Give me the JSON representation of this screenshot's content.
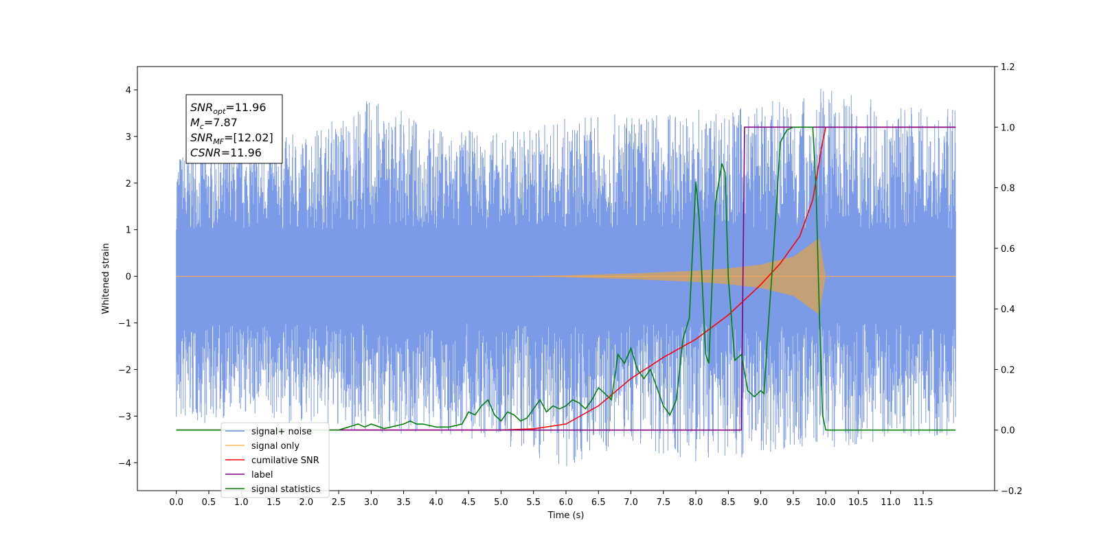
{
  "chart_data": {
    "type": "line",
    "xlabel": "Time (s)",
    "ylabel": "Whitened strain",
    "xlim": [
      -0.6,
      12.6
    ],
    "ylim": [
      -4.6,
      4.5
    ],
    "y2lim": [
      -0.2,
      1.2
    ],
    "x_ticks": [
      "0.0",
      "0.5",
      "1.0",
      "1.5",
      "2.0",
      "2.5",
      "3.0",
      "3.5",
      "4.0",
      "4.5",
      "5.0",
      "5.5",
      "6.0",
      "6.5",
      "7.0",
      "7.5",
      "8.0",
      "8.5",
      "9.0",
      "9.5",
      "10.0",
      "10.5",
      "11.0",
      "11.5"
    ],
    "y_ticks": [
      "−4",
      "−3",
      "−2",
      "−1",
      "0",
      "1",
      "2",
      "3",
      "4"
    ],
    "y2_ticks": [
      "−0.2",
      "0.0",
      "0.2",
      "0.4",
      "0.6",
      "0.8",
      "1.0",
      "1.2"
    ],
    "grid": false,
    "legend_placement": "lower-left",
    "annotation": {
      "lines": [
        {
          "base": "SNR",
          "sub": "opt",
          "rest": "=11.96"
        },
        {
          "base": "M",
          "sub": "c",
          "rest": "=7.87"
        },
        {
          "base": "SNR",
          "sub": "MF",
          "rest": "=[12.02]"
        },
        {
          "base": "CSNR",
          "sub": "",
          "rest": "=11.96"
        }
      ]
    },
    "legend": [
      {
        "label": "signal+ noise",
        "color": "#6d8fe6"
      },
      {
        "label": "signal only",
        "color": "#ffb74d"
      },
      {
        "label": "cumilative SNR",
        "color": "#ff0000"
      },
      {
        "label": "label",
        "color": "#800080"
      },
      {
        "label": "signal statistics",
        "color": "#008000"
      }
    ],
    "series": [
      {
        "name": "signal+ noise",
        "axis": "left",
        "color": "#6d8fe6",
        "render": "band",
        "x": [
          0.0,
          1.0,
          2.0,
          3.0,
          4.0,
          5.0,
          6.0,
          7.0,
          8.0,
          9.0,
          10.0,
          11.0,
          12.0
        ],
        "max": [
          2.7,
          2.9,
          3.1,
          3.85,
          3.2,
          3.1,
          3.4,
          3.5,
          3.6,
          3.7,
          4.05,
          3.7,
          3.6
        ],
        "min": [
          -3.3,
          -3.0,
          -3.2,
          -3.4,
          -3.4,
          -3.7,
          -4.1,
          -3.6,
          -4.1,
          -3.8,
          -3.7,
          -3.5,
          -3.4
        ]
      },
      {
        "name": "signal only",
        "axis": "left",
        "color": "#c8a070",
        "render": "envelope",
        "x": [
          0.0,
          5.0,
          6.0,
          7.0,
          8.0,
          8.5,
          9.0,
          9.5,
          9.9,
          10.0,
          12.0
        ],
        "amp": [
          0.0,
          0.0,
          0.02,
          0.06,
          0.12,
          0.17,
          0.25,
          0.42,
          0.82,
          0.0,
          0.0
        ]
      },
      {
        "name": "cumilative SNR",
        "axis": "right",
        "color": "#ff0000",
        "x": [
          0.0,
          5.0,
          5.5,
          6.0,
          6.5,
          7.0,
          7.5,
          8.0,
          8.5,
          9.0,
          9.3,
          9.6,
          9.8,
          9.95,
          10.0,
          12.0
        ],
        "y": [
          0.0,
          0.0,
          0.004,
          0.02,
          0.08,
          0.17,
          0.24,
          0.3,
          0.38,
          0.48,
          0.55,
          0.64,
          0.76,
          0.95,
          1.0,
          1.0
        ]
      },
      {
        "name": "label",
        "axis": "right",
        "color": "#800080",
        "x": [
          0.0,
          8.7,
          8.75,
          12.0
        ],
        "y": [
          0.0,
          0.0,
          1.0,
          1.0
        ]
      },
      {
        "name": "signal statistics",
        "axis": "right",
        "color": "#008000",
        "x": [
          0.0,
          2.5,
          2.8,
          2.9,
          3.0,
          3.2,
          3.5,
          3.6,
          3.7,
          3.8,
          4.0,
          4.2,
          4.4,
          4.5,
          4.6,
          4.7,
          4.8,
          4.9,
          5.0,
          5.1,
          5.2,
          5.3,
          5.4,
          5.5,
          5.6,
          5.7,
          5.8,
          5.9,
          6.0,
          6.1,
          6.2,
          6.3,
          6.4,
          6.5,
          6.6,
          6.7,
          6.8,
          6.9,
          7.0,
          7.1,
          7.2,
          7.3,
          7.4,
          7.5,
          7.6,
          7.7,
          7.8,
          7.9,
          8.0,
          8.05,
          8.15,
          8.2,
          8.3,
          8.4,
          8.45,
          8.5,
          8.6,
          8.7,
          8.8,
          8.9,
          9.0,
          9.05,
          9.1,
          9.2,
          9.3,
          9.4,
          9.5,
          9.6,
          9.7,
          9.8,
          9.85,
          9.9,
          9.95,
          10.0,
          12.0
        ],
        "y": [
          0.0,
          0.0,
          0.02,
          0.01,
          0.02,
          0.005,
          0.02,
          0.03,
          0.02,
          0.02,
          0.01,
          0.01,
          0.02,
          0.06,
          0.05,
          0.08,
          0.1,
          0.05,
          0.03,
          0.06,
          0.05,
          0.03,
          0.04,
          0.07,
          0.1,
          0.06,
          0.08,
          0.07,
          0.08,
          0.1,
          0.09,
          0.07,
          0.1,
          0.14,
          0.12,
          0.1,
          0.25,
          0.22,
          0.27,
          0.2,
          0.17,
          0.2,
          0.14,
          0.08,
          0.05,
          0.1,
          0.3,
          0.37,
          0.82,
          0.7,
          0.25,
          0.22,
          0.75,
          0.88,
          0.85,
          0.5,
          0.23,
          0.25,
          0.13,
          0.11,
          0.13,
          0.12,
          0.3,
          0.6,
          0.95,
          0.99,
          1.0,
          1.0,
          1.0,
          1.0,
          0.8,
          0.4,
          0.05,
          0.0,
          0.0
        ]
      }
    ]
  }
}
